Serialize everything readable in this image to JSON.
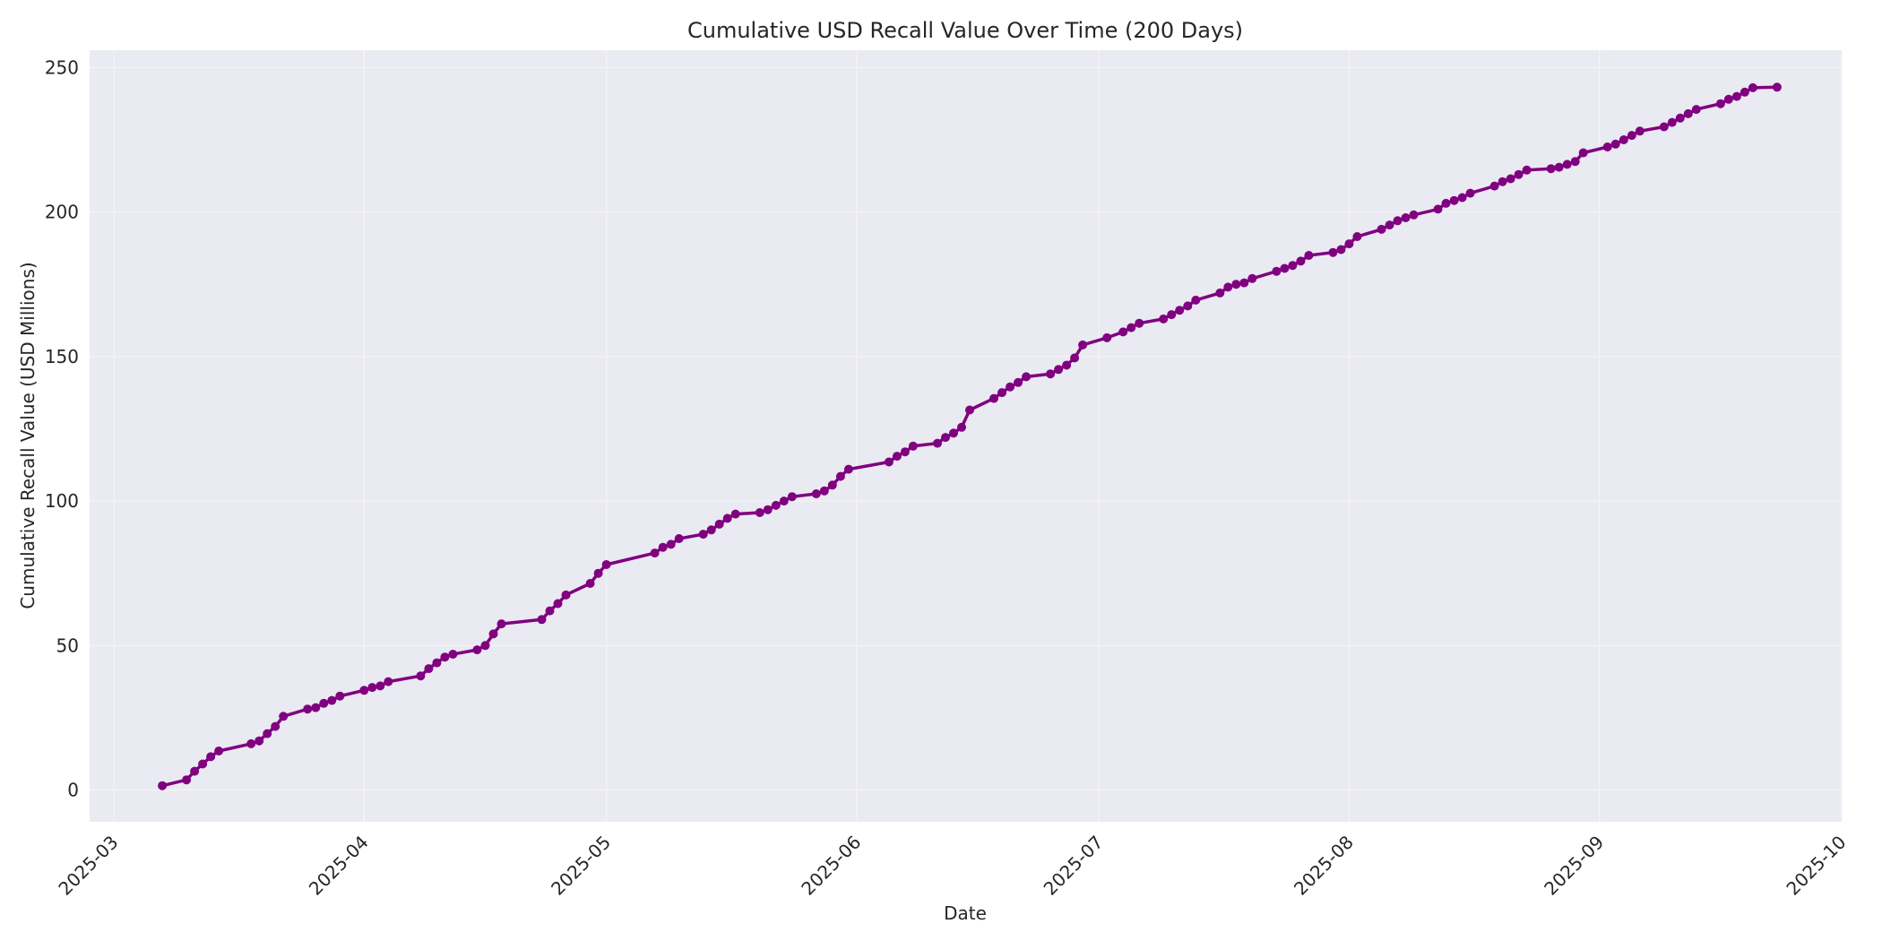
{
  "chart_data": {
    "type": "line",
    "title": "Cumulative USD Recall Value Over Time (200 Days)",
    "xlabel": "Date",
    "ylabel": "Cumulative Recall Value (USD Millions)",
    "x_ticks": [
      "2025-03",
      "2025-04",
      "2025-05",
      "2025-06",
      "2025-07",
      "2025-08",
      "2025-09",
      "2025-10"
    ],
    "y_ticks": [
      0,
      50,
      100,
      150,
      200,
      250
    ],
    "xlim": [
      "2025-02-26",
      "2025-10-01"
    ],
    "ylim": [
      -11,
      256
    ],
    "grid": true,
    "legend": "none",
    "series": [
      {
        "color": "#800080",
        "marker": "circle",
        "x": [
          "2025-03-07",
          "2025-03-10",
          "2025-03-11",
          "2025-03-12",
          "2025-03-13",
          "2025-03-14",
          "2025-03-18",
          "2025-03-19",
          "2025-03-20",
          "2025-03-21",
          "2025-03-22",
          "2025-03-25",
          "2025-03-26",
          "2025-03-27",
          "2025-03-28",
          "2025-03-29",
          "2025-04-01",
          "2025-04-02",
          "2025-04-03",
          "2025-04-04",
          "2025-04-08",
          "2025-04-09",
          "2025-04-10",
          "2025-04-11",
          "2025-04-12",
          "2025-04-15",
          "2025-04-16",
          "2025-04-17",
          "2025-04-18",
          "2025-04-23",
          "2025-04-24",
          "2025-04-25",
          "2025-04-26",
          "2025-04-29",
          "2025-04-30",
          "2025-05-01",
          "2025-05-07",
          "2025-05-08",
          "2025-05-09",
          "2025-05-10",
          "2025-05-13",
          "2025-05-14",
          "2025-05-15",
          "2025-05-16",
          "2025-05-17",
          "2025-05-20",
          "2025-05-21",
          "2025-05-22",
          "2025-05-23",
          "2025-05-24",
          "2025-05-27",
          "2025-05-28",
          "2025-05-29",
          "2025-05-30",
          "2025-05-31",
          "2025-06-05",
          "2025-06-06",
          "2025-06-07",
          "2025-06-08",
          "2025-06-11",
          "2025-06-12",
          "2025-06-13",
          "2025-06-14",
          "2025-06-15",
          "2025-06-18",
          "2025-06-19",
          "2025-06-20",
          "2025-06-21",
          "2025-06-22",
          "2025-06-25",
          "2025-06-26",
          "2025-06-27",
          "2025-06-28",
          "2025-06-29",
          "2025-07-02",
          "2025-07-04",
          "2025-07-05",
          "2025-07-06",
          "2025-07-09",
          "2025-07-10",
          "2025-07-11",
          "2025-07-12",
          "2025-07-13",
          "2025-07-16",
          "2025-07-17",
          "2025-07-18",
          "2025-07-19",
          "2025-07-20",
          "2025-07-23",
          "2025-07-24",
          "2025-07-25",
          "2025-07-26",
          "2025-07-27",
          "2025-07-30",
          "2025-07-31",
          "2025-08-01",
          "2025-08-02",
          "2025-08-05",
          "2025-08-06",
          "2025-08-07",
          "2025-08-08",
          "2025-08-09",
          "2025-08-12",
          "2025-08-13",
          "2025-08-14",
          "2025-08-15",
          "2025-08-16",
          "2025-08-19",
          "2025-08-20",
          "2025-08-21",
          "2025-08-22",
          "2025-08-23",
          "2025-08-26",
          "2025-08-27",
          "2025-08-28",
          "2025-08-29",
          "2025-08-30",
          "2025-09-02",
          "2025-09-03",
          "2025-09-04",
          "2025-09-05",
          "2025-09-06",
          "2025-09-09",
          "2025-09-10",
          "2025-09-11",
          "2025-09-12",
          "2025-09-13",
          "2025-09-16",
          "2025-09-17",
          "2025-09-18",
          "2025-09-19",
          "2025-09-20",
          "2025-09-23"
        ],
        "y": [
          1.5,
          3.5,
          6.5,
          9,
          11.5,
          13.5,
          16,
          17,
          19.5,
          22,
          25.5,
          28,
          28.5,
          30,
          31,
          32.5,
          34.5,
          35.5,
          36,
          37.5,
          39.5,
          42,
          44,
          46,
          47,
          48.5,
          50,
          54,
          57.5,
          59,
          62,
          64.5,
          67.5,
          71.5,
          75,
          78,
          82,
          84,
          85,
          87,
          88.5,
          90,
          92,
          94,
          95.5,
          96,
          97,
          98.5,
          100,
          101.5,
          102.5,
          103.5,
          105.5,
          108.5,
          111,
          113.5,
          115.5,
          117,
          119,
          120,
          122,
          123.5,
          125.5,
          131.5,
          135.5,
          137.5,
          139.5,
          141,
          143,
          144,
          145.5,
          147,
          149.5,
          154,
          156.5,
          158.5,
          160,
          161.5,
          163,
          164.5,
          166,
          167.5,
          169.5,
          172,
          174,
          175,
          175.5,
          177,
          179.5,
          180.5,
          181.5,
          183,
          185,
          186,
          187,
          189,
          191.5,
          194,
          195.5,
          197,
          198,
          199,
          201,
          203,
          204,
          205,
          206.5,
          209,
          210.5,
          211.5,
          213,
          214.5,
          215,
          215.5,
          216.5,
          217.5,
          220.5,
          222.5,
          223.5,
          225,
          226.5,
          228,
          229.5,
          231,
          232.5,
          234,
          235.5,
          237.5,
          239,
          240,
          241.5,
          243,
          243.2
        ]
      }
    ]
  }
}
